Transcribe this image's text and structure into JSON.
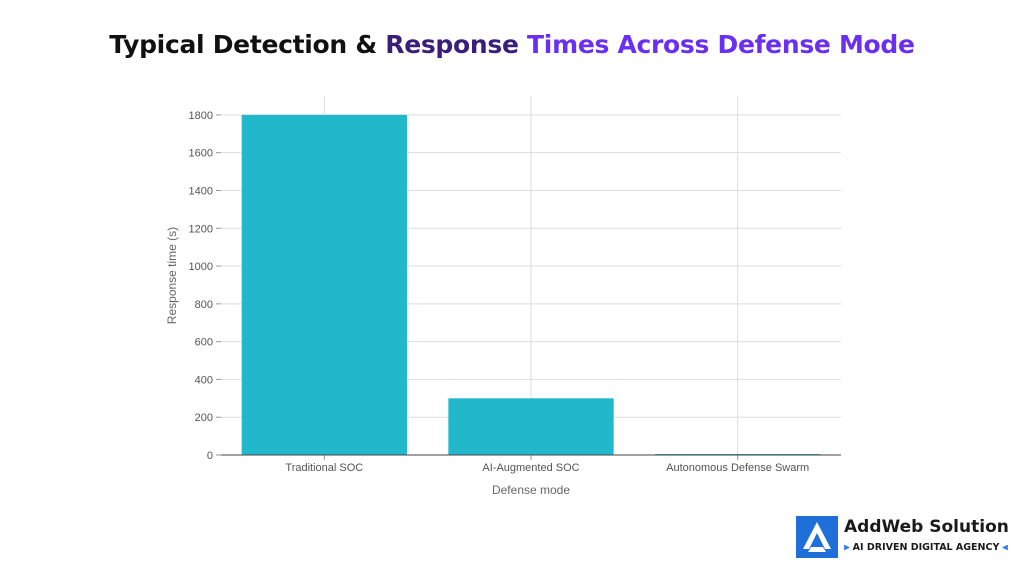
{
  "title": {
    "part1": "Typical Detection & ",
    "part2": "Response ",
    "part3": "Times Across Defense Mode"
  },
  "chart_data": {
    "type": "bar",
    "categories": [
      "Traditional SOC",
      "AI-Augmented SOC",
      "Autonomous Defense Swarm"
    ],
    "values": [
      1800,
      300,
      5
    ],
    "xlabel": "Defense mode",
    "ylabel": "Response time (s)",
    "ylim": [
      0,
      1900
    ],
    "yticks": [
      0,
      200,
      400,
      600,
      800,
      1000,
      1200,
      1400,
      1600,
      1800
    ],
    "grid": true,
    "bar_color": "#22b8cc"
  },
  "logo": {
    "name": "AddWeb Solution",
    "tagline": "AI DRIVEN DIGITAL AGENCY",
    "brand_color": "#1e6fd9"
  }
}
